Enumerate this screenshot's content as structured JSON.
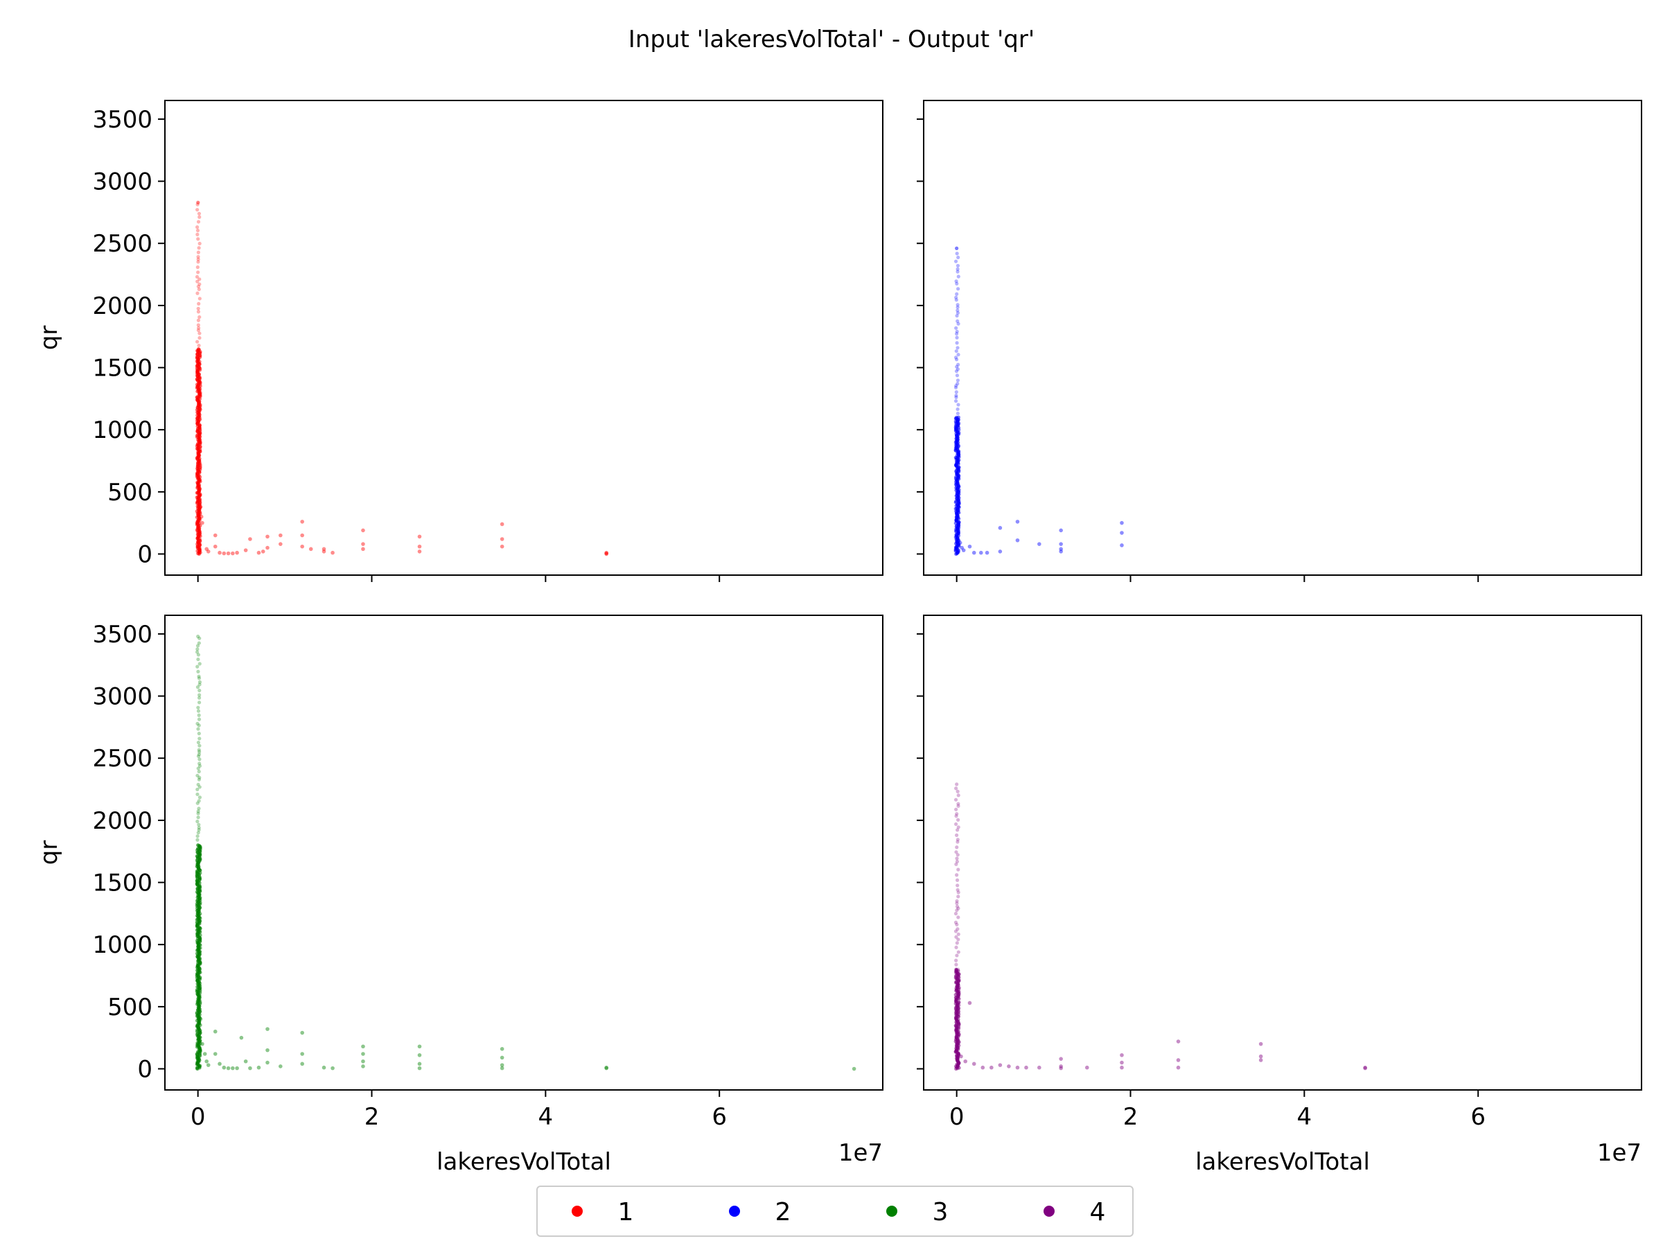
{
  "figure": {
    "title": "Input 'lakeresVolTotal' - Output 'qr'",
    "x_offset_label": "1e7"
  },
  "legend": {
    "placement": "bottom-center",
    "entries": [
      {
        "label": "1",
        "color": "#ff0000"
      },
      {
        "label": "2",
        "color": "#0000ff"
      },
      {
        "label": "3",
        "color": "#008000"
      },
      {
        "label": "4",
        "color": "#800080"
      }
    ]
  },
  "chart_data": [
    {
      "type": "scatter",
      "panel": "top-left",
      "series_label": "1",
      "color": "#ff0000",
      "xlabel": "",
      "ylabel": "qr",
      "xlim": [
        -0.38,
        7.88
      ],
      "ylim": [
        -170,
        3650
      ],
      "x_scale_exponent": 7,
      "xticks": [
        0,
        2,
        4,
        6
      ],
      "xticklabels": [],
      "yticks": [
        0,
        500,
        1000,
        1500,
        2000,
        2500,
        3000,
        3500
      ],
      "grid": false,
      "column_x": 0.0,
      "column_y_max": 2830,
      "dense_y_max": 1650,
      "points": [
        [
          0.02,
          420
        ],
        [
          0.03,
          380
        ],
        [
          0.04,
          300
        ],
        [
          0.05,
          250
        ],
        [
          0.1,
          40
        ],
        [
          0.12,
          20
        ],
        [
          0.2,
          150
        ],
        [
          0.2,
          60
        ],
        [
          0.25,
          10
        ],
        [
          0.3,
          5
        ],
        [
          0.35,
          5
        ],
        [
          0.4,
          5
        ],
        [
          0.45,
          10
        ],
        [
          0.55,
          30
        ],
        [
          0.6,
          120
        ],
        [
          0.7,
          10
        ],
        [
          0.75,
          20
        ],
        [
          0.8,
          140
        ],
        [
          0.8,
          50
        ],
        [
          0.95,
          150
        ],
        [
          0.95,
          80
        ],
        [
          1.2,
          260
        ],
        [
          1.2,
          150
        ],
        [
          1.2,
          60
        ],
        [
          1.3,
          40
        ],
        [
          1.45,
          40
        ],
        [
          1.45,
          20
        ],
        [
          1.55,
          10
        ],
        [
          1.9,
          190
        ],
        [
          1.9,
          80
        ],
        [
          1.9,
          40
        ],
        [
          2.55,
          140
        ],
        [
          2.55,
          60
        ],
        [
          2.55,
          20
        ],
        [
          3.5,
          240
        ],
        [
          3.5,
          120
        ],
        [
          3.5,
          60
        ],
        [
          4.7,
          10
        ],
        [
          4.7,
          5
        ],
        [
          4.7,
          0
        ]
      ]
    },
    {
      "type": "scatter",
      "panel": "top-right",
      "series_label": "2",
      "color": "#0000ff",
      "xlabel": "",
      "ylabel": "",
      "xlim": [
        -0.38,
        7.88
      ],
      "ylim": [
        -170,
        3650
      ],
      "x_scale_exponent": 7,
      "xticks": [
        0,
        2,
        4,
        6
      ],
      "xticklabels": [],
      "yticks": [
        0,
        500,
        1000,
        1500,
        2000,
        2500,
        3000,
        3500
      ],
      "grid": false,
      "column_x": 0.0,
      "column_y_max": 2460,
      "dense_y_max": 1100,
      "points": [
        [
          0.04,
          90
        ],
        [
          0.06,
          50
        ],
        [
          0.08,
          30
        ],
        [
          0.15,
          60
        ],
        [
          0.2,
          10
        ],
        [
          0.28,
          10
        ],
        [
          0.35,
          10
        ],
        [
          0.5,
          210
        ],
        [
          0.5,
          20
        ],
        [
          0.7,
          260
        ],
        [
          0.7,
          110
        ],
        [
          0.95,
          80
        ],
        [
          1.2,
          190
        ],
        [
          1.2,
          80
        ],
        [
          1.2,
          40
        ],
        [
          1.2,
          20
        ],
        [
          1.9,
          250
        ],
        [
          1.9,
          170
        ],
        [
          1.9,
          70
        ]
      ]
    },
    {
      "type": "scatter",
      "panel": "bottom-left",
      "series_label": "3",
      "color": "#008000",
      "xlabel": "lakeresVolTotal",
      "ylabel": "qr",
      "xlim": [
        -0.38,
        7.88
      ],
      "ylim": [
        -170,
        3650
      ],
      "x_scale_exponent": 7,
      "xticks": [
        0,
        2,
        4,
        6
      ],
      "xticklabels": [
        "0",
        "2",
        "4",
        "6"
      ],
      "yticks": [
        0,
        500,
        1000,
        1500,
        2000,
        2500,
        3000,
        3500
      ],
      "grid": false,
      "column_x": 0.0,
      "column_y_max": 3480,
      "dense_y_max": 1800,
      "points": [
        [
          0.03,
          400
        ],
        [
          0.05,
          200
        ],
        [
          0.08,
          120
        ],
        [
          0.1,
          60
        ],
        [
          0.12,
          30
        ],
        [
          0.2,
          300
        ],
        [
          0.2,
          120
        ],
        [
          0.25,
          40
        ],
        [
          0.3,
          10
        ],
        [
          0.35,
          5
        ],
        [
          0.4,
          5
        ],
        [
          0.45,
          5
        ],
        [
          0.5,
          250
        ],
        [
          0.55,
          60
        ],
        [
          0.6,
          5
        ],
        [
          0.7,
          10
        ],
        [
          0.8,
          320
        ],
        [
          0.8,
          150
        ],
        [
          0.8,
          50
        ],
        [
          0.95,
          20
        ],
        [
          1.2,
          290
        ],
        [
          1.2,
          120
        ],
        [
          1.2,
          40
        ],
        [
          1.45,
          10
        ],
        [
          1.55,
          5
        ],
        [
          1.9,
          180
        ],
        [
          1.9,
          120
        ],
        [
          1.9,
          60
        ],
        [
          1.9,
          20
        ],
        [
          2.55,
          180
        ],
        [
          2.55,
          110
        ],
        [
          2.55,
          40
        ],
        [
          2.55,
          5
        ],
        [
          3.5,
          160
        ],
        [
          3.5,
          90
        ],
        [
          3.5,
          30
        ],
        [
          3.5,
          5
        ],
        [
          4.7,
          10
        ],
        [
          4.7,
          5
        ],
        [
          7.55,
          0
        ]
      ]
    },
    {
      "type": "scatter",
      "panel": "bottom-right",
      "series_label": "4",
      "color": "#800080",
      "xlabel": "lakeresVolTotal",
      "ylabel": "",
      "xlim": [
        -0.38,
        7.88
      ],
      "ylim": [
        -170,
        3650
      ],
      "x_scale_exponent": 7,
      "xticks": [
        0,
        2,
        4,
        6
      ],
      "xticklabels": [
        "0",
        "2",
        "4",
        "6"
      ],
      "yticks": [
        0,
        500,
        1000,
        1500,
        2000,
        2500,
        3000,
        3500
      ],
      "grid": false,
      "column_x": 0.0,
      "column_y_max": 2290,
      "dense_y_max": 800,
      "points": [
        [
          0.05,
          100
        ],
        [
          0.1,
          60
        ],
        [
          0.15,
          530
        ],
        [
          0.2,
          40
        ],
        [
          0.3,
          10
        ],
        [
          0.4,
          10
        ],
        [
          0.5,
          30
        ],
        [
          0.6,
          20
        ],
        [
          0.7,
          10
        ],
        [
          0.8,
          10
        ],
        [
          0.95,
          10
        ],
        [
          1.2,
          80
        ],
        [
          1.2,
          20
        ],
        [
          1.2,
          5
        ],
        [
          1.5,
          10
        ],
        [
          1.9,
          110
        ],
        [
          1.9,
          50
        ],
        [
          1.9,
          10
        ],
        [
          2.55,
          220
        ],
        [
          2.55,
          70
        ],
        [
          2.55,
          10
        ],
        [
          3.5,
          200
        ],
        [
          3.5,
          100
        ],
        [
          3.5,
          70
        ],
        [
          4.7,
          10
        ],
        [
          4.7,
          5
        ]
      ]
    }
  ]
}
